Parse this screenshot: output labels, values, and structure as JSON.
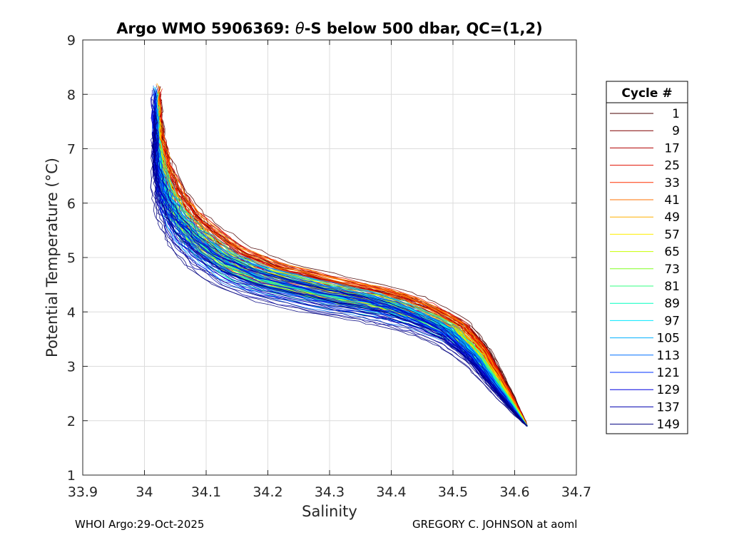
{
  "chart_data": {
    "type": "line",
    "title_prefix": "Argo WMO 5906369: ",
    "title_theta": "θ",
    "title_suffix": "-S below 500 dbar,  QC=(1,2)",
    "xlabel": "Salinity",
    "ylabel": "Potential Temperature (°C)",
    "xlim": [
      33.9,
      34.7
    ],
    "ylim": [
      1,
      9
    ],
    "xticks": [
      "33.9",
      "34",
      "34.1",
      "34.2",
      "34.3",
      "34.4",
      "34.5",
      "34.6",
      "34.7"
    ],
    "yticks": [
      "1",
      "2",
      "3",
      "4",
      "5",
      "6",
      "7",
      "8",
      "9"
    ],
    "grid": true,
    "legend_title": "Cycle #",
    "legend_position": "right-outside",
    "legend_entries": [
      {
        "name": "1",
        "color": "#4a0000"
      },
      {
        "name": "9",
        "color": "#800000"
      },
      {
        "name": "17",
        "color": "#b00000"
      },
      {
        "name": "25",
        "color": "#e01000"
      },
      {
        "name": "33",
        "color": "#ff3000"
      },
      {
        "name": "41",
        "color": "#ff7000"
      },
      {
        "name": "49",
        "color": "#ffb000"
      },
      {
        "name": "57",
        "color": "#ffee00"
      },
      {
        "name": "65",
        "color": "#c8ff00"
      },
      {
        "name": "73",
        "color": "#80ff20"
      },
      {
        "name": "81",
        "color": "#30ff80"
      },
      {
        "name": "89",
        "color": "#00ffc0"
      },
      {
        "name": "97",
        "color": "#00e8ff"
      },
      {
        "name": "105",
        "color": "#00b0ff"
      },
      {
        "name": "113",
        "color": "#0070ff"
      },
      {
        "name": "121",
        "color": "#0030ff"
      },
      {
        "name": "129",
        "color": "#0000e0"
      },
      {
        "name": "137",
        "color": "#0000b0"
      },
      {
        "name": "149",
        "color": "#000080"
      }
    ],
    "base_profile": {
      "x": [
        34.62,
        34.6,
        34.58,
        34.56,
        34.54,
        34.52,
        34.5,
        34.46,
        34.42,
        34.38,
        34.3,
        34.2,
        34.14,
        34.1,
        34.07,
        34.05,
        34.035,
        34.025,
        34.02,
        34.02
      ],
      "y": [
        1.9,
        2.2,
        2.5,
        2.8,
        3.1,
        3.3,
        3.5,
        3.7,
        3.85,
        3.95,
        4.1,
        4.35,
        4.6,
        4.9,
        5.2,
        5.5,
        5.85,
        6.3,
        6.8,
        7.3
      ]
    }
  },
  "footer": {
    "left": "WHOI Argo:29-Oct-2025",
    "right": "GREGORY C. JOHNSON at aoml"
  }
}
